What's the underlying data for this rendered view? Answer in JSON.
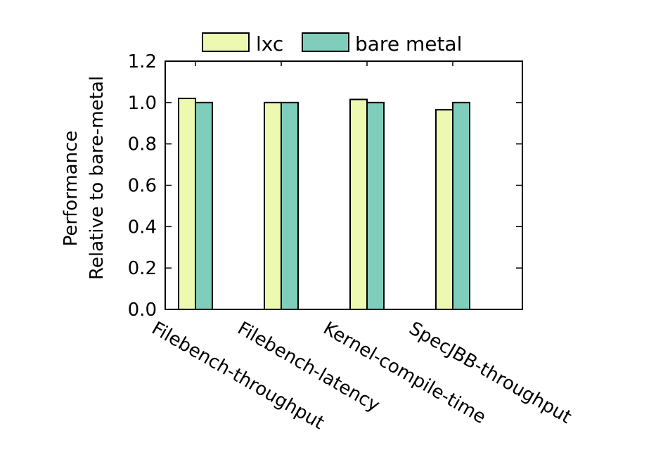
{
  "chart_data": {
    "type": "bar",
    "categories": [
      "Filebench-throughput",
      "Filebench-latency",
      "Kernel-compile-time",
      "SpecJBB-throughput"
    ],
    "series": [
      {
        "name": "lxc",
        "values": [
          1.02,
          1.0,
          1.015,
          0.965
        ],
        "color": "#edf8b1"
      },
      {
        "name": "bare metal",
        "values": [
          1.0,
          1.0,
          1.0,
          1.0
        ],
        "color": "#7fcdbb"
      }
    ],
    "ylabel_lines": [
      "Performance",
      "Relative to bare-metal"
    ],
    "ylim": [
      0,
      1.2
    ],
    "yticks": [
      "0.0",
      "0.2",
      "0.4",
      "0.6",
      "0.8",
      "1.0",
      "1.2"
    ],
    "grid": false,
    "legend_position": "top-center"
  }
}
